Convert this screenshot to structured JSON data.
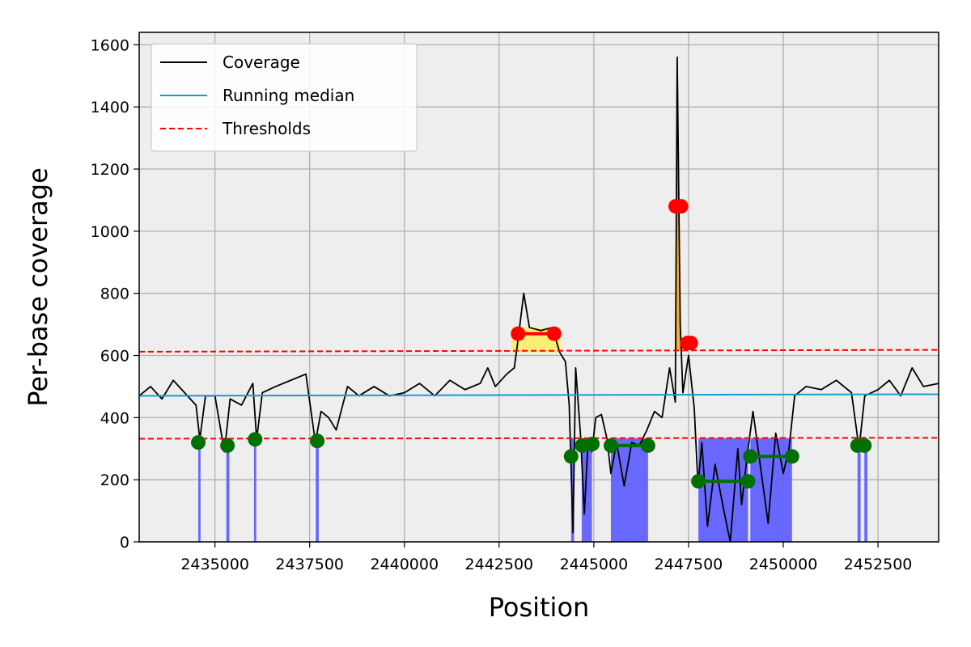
{
  "chart_data": {
    "type": "line",
    "xlabel": "Position",
    "ylabel": "Per-base coverage",
    "xlim": [
      2433000,
      2454100
    ],
    "ylim": [
      0,
      1640
    ],
    "xticks": [
      2435000,
      2437500,
      2440000,
      2442500,
      2445000,
      2447500,
      2450000,
      2452500
    ],
    "yticks": [
      0,
      200,
      400,
      600,
      800,
      1000,
      1200,
      1400,
      1600
    ],
    "grid": true,
    "legend": {
      "placement": "top-left",
      "entries": [
        "Coverage",
        "Running median",
        "Thresholds"
      ]
    },
    "colors": {
      "background": "#eeeeee",
      "grid": "#b0b0b0",
      "coverage": "#000000",
      "median": "#1a9bd0",
      "threshold": "#ff0000",
      "low_region": "#6060ff",
      "high_region_fill": "#ffee55",
      "low_marker": "#007000",
      "high_marker": "#ff0000",
      "peak_fill": "#f5a623"
    },
    "series": [
      {
        "name": "Coverage",
        "points": [
          [
            2433000,
            470
          ],
          [
            2433300,
            500
          ],
          [
            2433600,
            460
          ],
          [
            2433900,
            520
          ],
          [
            2434200,
            480
          ],
          [
            2434500,
            440
          ],
          [
            2434600,
            330
          ],
          [
            2434750,
            470
          ],
          [
            2435000,
            470
          ],
          [
            2435250,
            290
          ],
          [
            2435400,
            460
          ],
          [
            2435700,
            440
          ],
          [
            2436000,
            510
          ],
          [
            2436100,
            330
          ],
          [
            2436250,
            480
          ],
          [
            2436600,
            500
          ],
          [
            2437000,
            520
          ],
          [
            2437400,
            540
          ],
          [
            2437650,
            320
          ],
          [
            2437800,
            420
          ],
          [
            2438000,
            400
          ],
          [
            2438200,
            360
          ],
          [
            2438500,
            500
          ],
          [
            2438800,
            470
          ],
          [
            2439200,
            500
          ],
          [
            2439600,
            470
          ],
          [
            2440000,
            480
          ],
          [
            2440400,
            510
          ],
          [
            2440800,
            470
          ],
          [
            2441200,
            520
          ],
          [
            2441600,
            490
          ],
          [
            2442000,
            510
          ],
          [
            2442200,
            560
          ],
          [
            2442400,
            500
          ],
          [
            2442700,
            540
          ],
          [
            2442900,
            560
          ],
          [
            2443000,
            650
          ],
          [
            2443150,
            800
          ],
          [
            2443300,
            690
          ],
          [
            2443600,
            680
          ],
          [
            2443900,
            690
          ],
          [
            2444100,
            610
          ],
          [
            2444250,
            580
          ],
          [
            2444350,
            440
          ],
          [
            2444450,
            30
          ],
          [
            2444520,
            560
          ],
          [
            2444650,
            340
          ],
          [
            2444750,
            90
          ],
          [
            2444850,
            330
          ],
          [
            2444950,
            290
          ],
          [
            2445050,
            400
          ],
          [
            2445200,
            410
          ],
          [
            2445350,
            330
          ],
          [
            2445450,
            220
          ],
          [
            2445600,
            320
          ],
          [
            2445800,
            180
          ],
          [
            2446000,
            320
          ],
          [
            2446200,
            310
          ],
          [
            2446400,
            360
          ],
          [
            2446600,
            420
          ],
          [
            2446800,
            400
          ],
          [
            2447000,
            560
          ],
          [
            2447150,
            450
          ],
          [
            2447200,
            1560
          ],
          [
            2447280,
            700
          ],
          [
            2447350,
            480
          ],
          [
            2447500,
            600
          ],
          [
            2447650,
            430
          ],
          [
            2447750,
            180
          ],
          [
            2447850,
            320
          ],
          [
            2448000,
            50
          ],
          [
            2448200,
            250
          ],
          [
            2448400,
            120
          ],
          [
            2448600,
            0
          ],
          [
            2448800,
            300
          ],
          [
            2448900,
            120
          ],
          [
            2449050,
            280
          ],
          [
            2449200,
            420
          ],
          [
            2449400,
            240
          ],
          [
            2449600,
            60
          ],
          [
            2449800,
            350
          ],
          [
            2450000,
            220
          ],
          [
            2450150,
            300
          ],
          [
            2450300,
            470
          ],
          [
            2450600,
            500
          ],
          [
            2451000,
            490
          ],
          [
            2451400,
            520
          ],
          [
            2451800,
            480
          ],
          [
            2452000,
            300
          ],
          [
            2452150,
            470
          ],
          [
            2452500,
            490
          ],
          [
            2452800,
            520
          ],
          [
            2453100,
            470
          ],
          [
            2453400,
            560
          ],
          [
            2453700,
            500
          ],
          [
            2454100,
            510
          ]
        ]
      },
      {
        "name": "Running median",
        "points": [
          [
            2433000,
            470
          ],
          [
            2454100,
            475
          ]
        ]
      },
      {
        "name": "Thresholds",
        "upper": [
          [
            2433000,
            612
          ],
          [
            2454100,
            618
          ]
        ],
        "lower": [
          [
            2433000,
            332
          ],
          [
            2454100,
            335
          ]
        ]
      }
    ],
    "low_regions": [
      [
        2434560,
        2434620
      ],
      [
        2435300,
        2435380
      ],
      [
        2436030,
        2436090
      ],
      [
        2437660,
        2437740
      ],
      [
        2444400,
        2444480
      ],
      [
        2444680,
        2444950
      ],
      [
        2445450,
        2446430
      ],
      [
        2447760,
        2449070
      ],
      [
        2449130,
        2450230
      ],
      [
        2451960,
        2452040
      ],
      [
        2452140,
        2452220
      ]
    ],
    "high_regions": [
      [
        2443000,
        2443950
      ]
    ],
    "low_markers": [
      [
        2434560,
        320
      ],
      [
        2435330,
        310
      ],
      [
        2436060,
        330
      ],
      [
        2437700,
        325
      ],
      [
        2444400,
        275
      ],
      [
        2444690,
        310
      ],
      [
        2444960,
        315
      ],
      [
        2445450,
        310
      ],
      [
        2446430,
        310
      ],
      [
        2447760,
        195
      ],
      [
        2449070,
        195
      ],
      [
        2449130,
        275
      ],
      [
        2450230,
        275
      ],
      [
        2451960,
        310
      ],
      [
        2452140,
        310
      ]
    ],
    "low_segments": [
      [
        2445450,
        2446430,
        310
      ],
      [
        2447760,
        2449070,
        195
      ],
      [
        2449130,
        2450230,
        275
      ]
    ],
    "high_markers": [
      [
        2443000,
        670
      ],
      [
        2443950,
        670
      ],
      [
        2447160,
        1080
      ],
      [
        2447300,
        1080
      ],
      [
        2447470,
        640
      ],
      [
        2447560,
        640
      ]
    ],
    "high_segments": [
      [
        2443000,
        2443950,
        670
      ],
      [
        2447160,
        2447300,
        1080
      ],
      [
        2447470,
        2447560,
        640
      ]
    ]
  }
}
